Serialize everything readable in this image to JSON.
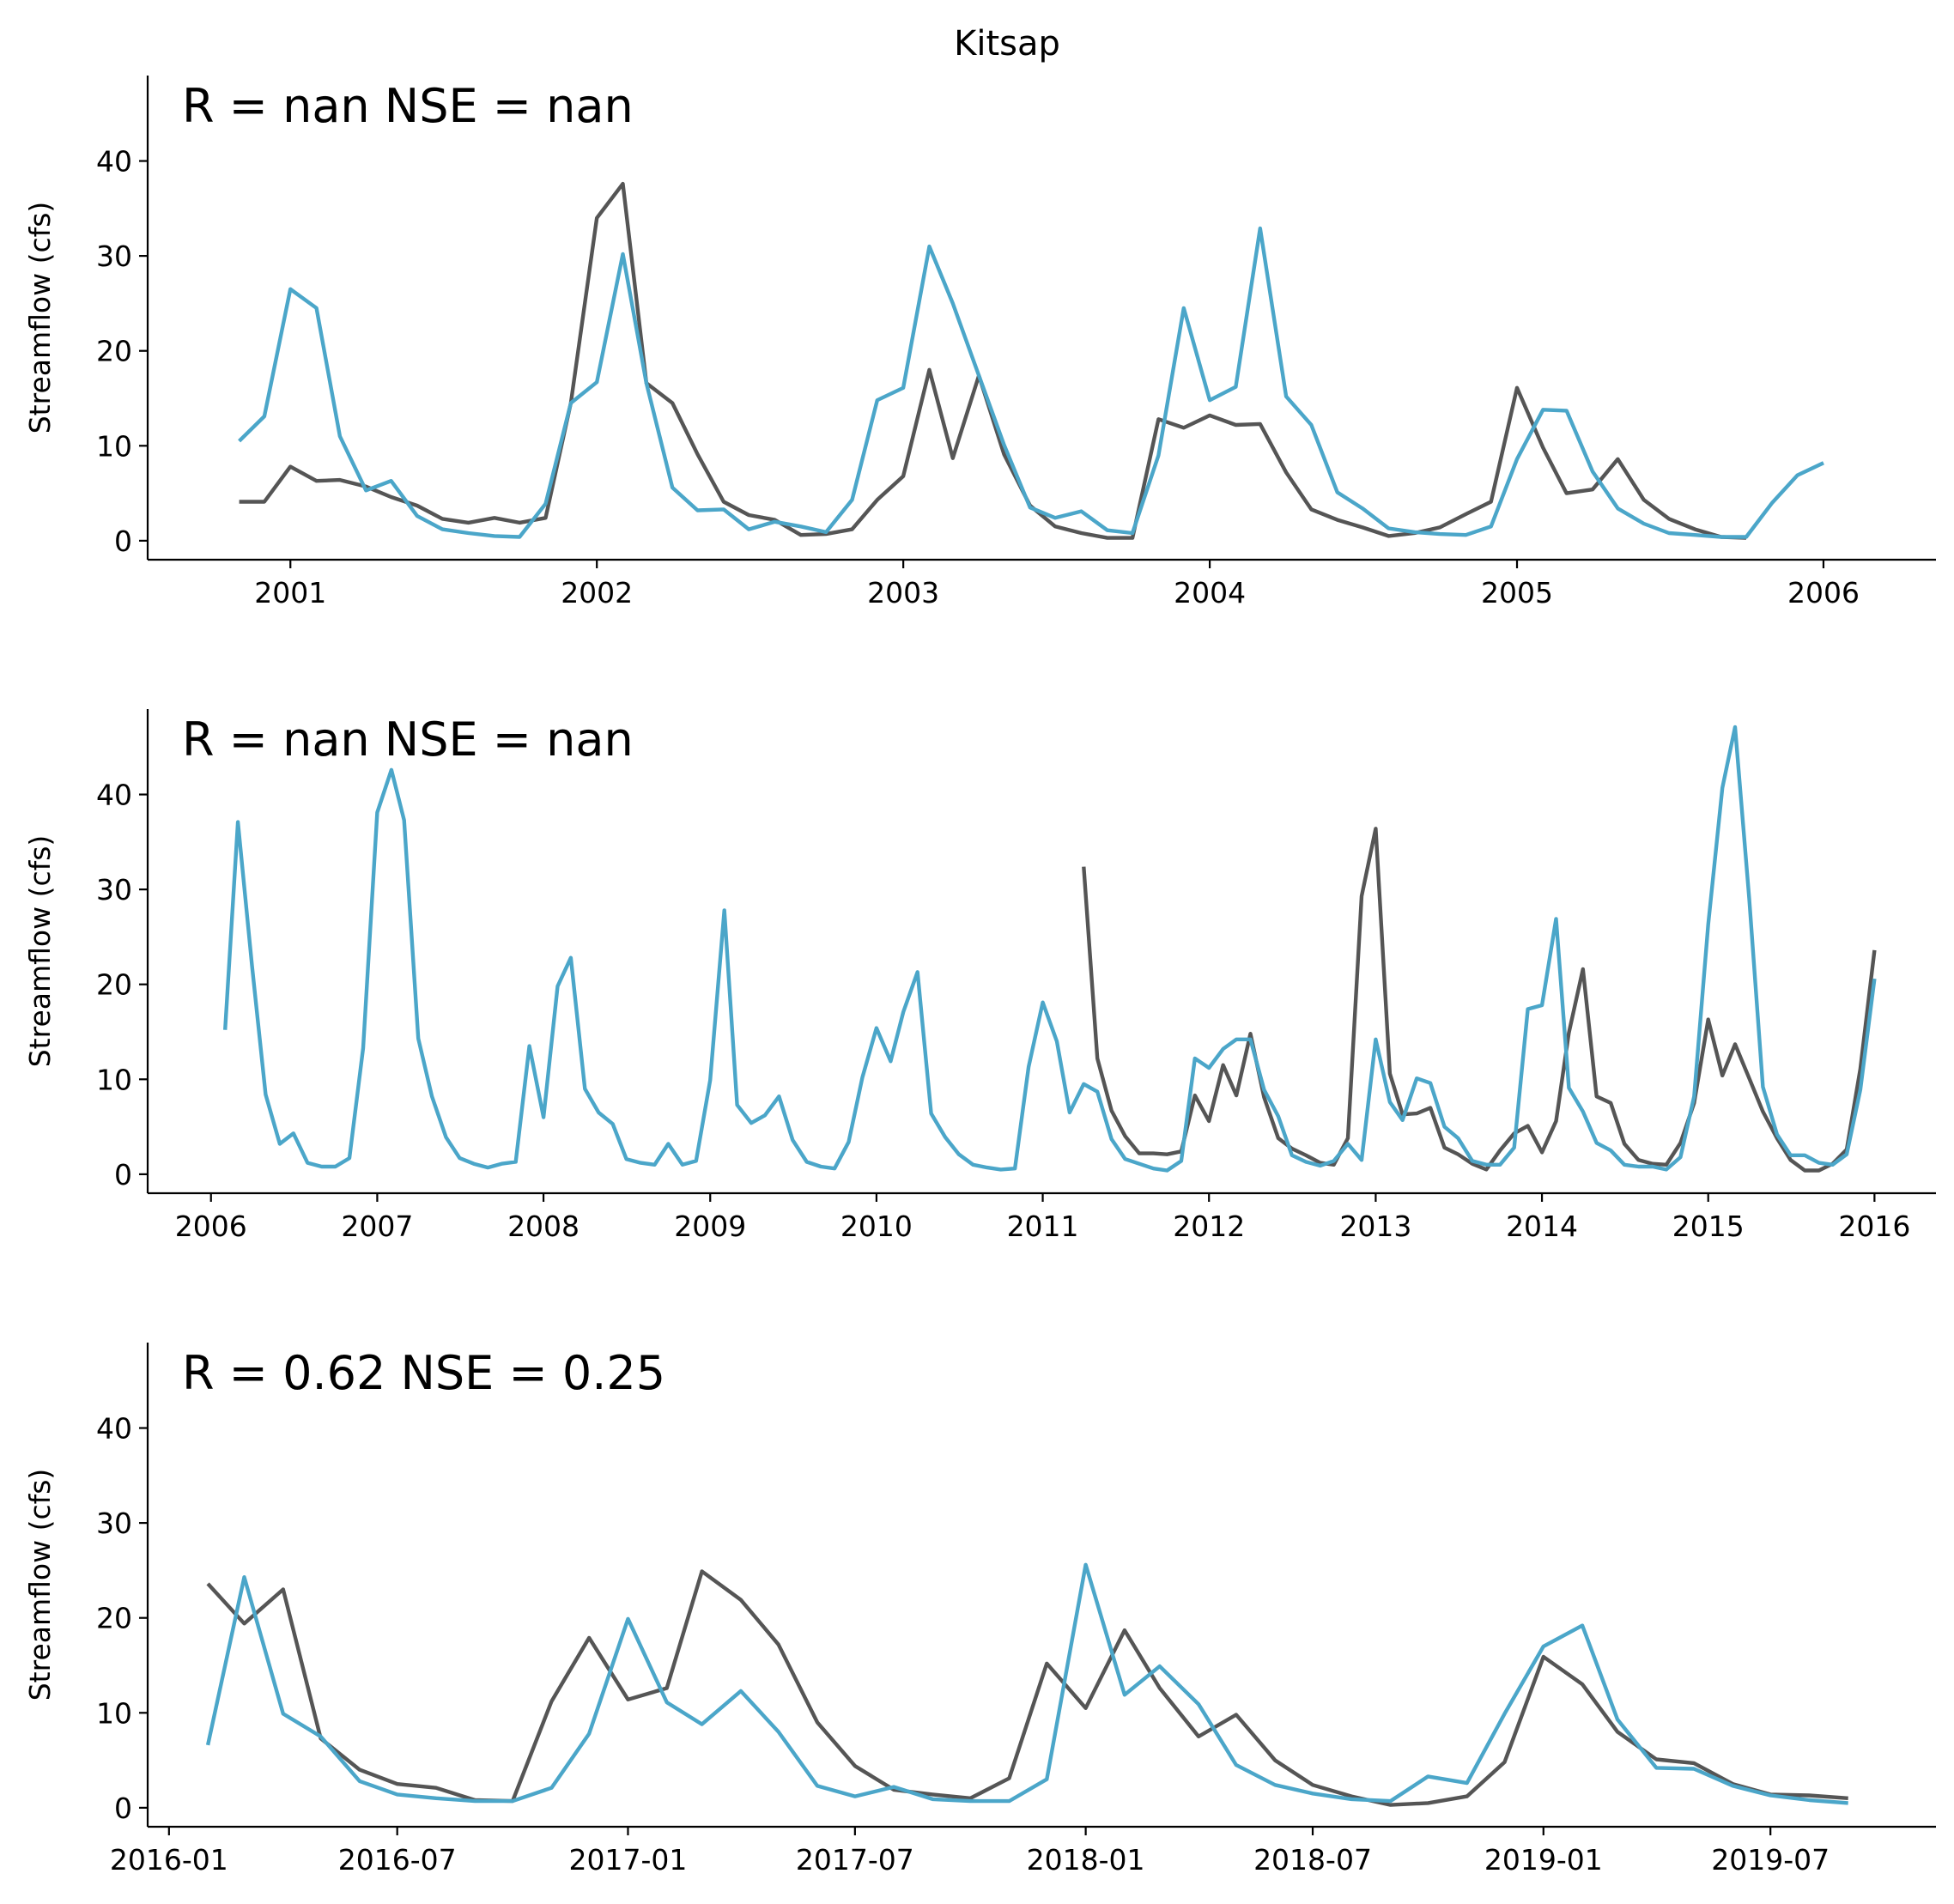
{
  "title": "Kitsap",
  "colors": {
    "gray_series": "#555555",
    "blue_series": "#4ba6c9"
  },
  "chart_data": [
    {
      "type": "line",
      "stats_text": "R = nan  NSE = nan",
      "ylabel": "Streamflow (cfs)",
      "ylim": [
        -2,
        49
      ],
      "yticks": [
        0,
        10,
        20,
        30,
        40
      ],
      "x_start": "2000-11",
      "xlim": [
        "2000-07-15",
        "2006-05-15"
      ],
      "xticks": [
        {
          "date": "2001-01",
          "label": "2001"
        },
        {
          "date": "2002-01",
          "label": "2002"
        },
        {
          "date": "2003-01",
          "label": "2003"
        },
        {
          "date": "2004-01",
          "label": "2004"
        },
        {
          "date": "2005-01",
          "label": "2005"
        },
        {
          "date": "2006-01",
          "label": "2006"
        }
      ],
      "series": [
        {
          "color": "#555555",
          "values": [
            4.1,
            4.1,
            7.8,
            6.3,
            6.4,
            5.7,
            4.6,
            3.7,
            2.3,
            1.9,
            2.4,
            1.9,
            2.4,
            14.5,
            34.0,
            37.6,
            16.6,
            14.5,
            9.1,
            4.1,
            2.7,
            2.2,
            0.6,
            0.7,
            1.2,
            4.3,
            6.8,
            18.0,
            8.7,
            17.4,
            9.1,
            3.7,
            1.5,
            0.8,
            0.3,
            0.3,
            12.8,
            11.9,
            13.2,
            12.2,
            12.3,
            7.2,
            3.3,
            2.2,
            1.4,
            0.5,
            0.8,
            1.4,
            2.8,
            4.1,
            16.1,
            9.8,
            5.0,
            5.4,
            8.6,
            4.3,
            2.3,
            1.2,
            0.4,
            0.3
          ]
        },
        {
          "color": "#4ba6c9",
          "values": [
            10.5,
            13.1,
            26.5,
            24.5,
            11.0,
            5.3,
            6.3,
            2.6,
            1.2,
            0.8,
            0.5,
            0.4,
            3.9,
            14.5,
            16.7,
            30.2,
            16.6,
            5.6,
            3.2,
            3.3,
            1.2,
            2.0,
            1.5,
            0.9,
            4.3,
            14.8,
            16.1,
            31.0,
            25.0,
            17.4,
            10.1,
            3.5,
            2.4,
            3.1,
            1.1,
            0.8,
            9.0,
            24.5,
            14.8,
            16.2,
            32.9,
            15.2,
            12.2,
            5.1,
            3.4,
            1.3,
            0.9,
            0.7,
            0.6,
            1.5,
            8.6,
            13.8,
            13.7,
            7.3,
            3.4,
            1.8,
            0.8,
            0.6,
            0.4,
            0.4,
            4.0,
            6.9,
            8.2
          ]
        }
      ]
    },
    {
      "type": "line",
      "stats_text": "R = nan  NSE = nan",
      "ylabel": "Streamflow (cfs)",
      "ylim": [
        -2,
        49
      ],
      "yticks": [
        0,
        10,
        20,
        30,
        40
      ],
      "x_start": "2006-02",
      "xlim": [
        "2005-08-15",
        "2016-05-15"
      ],
      "xticks": [
        {
          "date": "2006-01",
          "label": "2006"
        },
        {
          "date": "2007-01",
          "label": "2007"
        },
        {
          "date": "2008-01",
          "label": "2008"
        },
        {
          "date": "2009-01",
          "label": "2009"
        },
        {
          "date": "2010-01",
          "label": "2010"
        },
        {
          "date": "2011-01",
          "label": "2011"
        },
        {
          "date": "2012-01",
          "label": "2012"
        },
        {
          "date": "2013-01",
          "label": "2013"
        },
        {
          "date": "2014-01",
          "label": "2014"
        },
        {
          "date": "2015-01",
          "label": "2015"
        },
        {
          "date": "2016-01",
          "label": "2016"
        }
      ],
      "series": [
        {
          "color": "#555555",
          "values": [
            null,
            null,
            null,
            null,
            null,
            null,
            null,
            null,
            null,
            null,
            null,
            null,
            null,
            null,
            null,
            null,
            null,
            null,
            null,
            null,
            null,
            null,
            null,
            null,
            null,
            null,
            null,
            null,
            null,
            null,
            null,
            null,
            null,
            null,
            null,
            null,
            null,
            null,
            null,
            null,
            null,
            null,
            null,
            null,
            null,
            null,
            null,
            null,
            null,
            null,
            null,
            null,
            null,
            null,
            null,
            null,
            null,
            null,
            null,
            null,
            null,
            null,
            32.4,
            12.2,
            6.7,
            4.0,
            2.2,
            2.2,
            2.1,
            2.4,
            8.3,
            5.6,
            11.5,
            8.3,
            14.8,
            8.1,
            3.8,
            2.7,
            2.0,
            1.2,
            1.0,
            3.8,
            29.3,
            36.4,
            10.6,
            6.3,
            6.4,
            7.0,
            2.8,
            2.1,
            1.1,
            0.5,
            2.5,
            4.3,
            5.1,
            2.3,
            5.6,
            14.9,
            21.6,
            8.2,
            7.5,
            3.2,
            1.5,
            1.1,
            1.0,
            3.3,
            7.5,
            16.3,
            10.4,
            13.7,
            10.1,
            6.6,
            3.8,
            1.5,
            0.4,
            0.4,
            1.1,
            2.6,
            11.1,
            23.6
          ]
        },
        {
          "color": "#4ba6c9",
          "values": [
            15.2,
            37.1,
            22.0,
            8.4,
            3.2,
            4.3,
            1.2,
            0.8,
            0.8,
            1.7,
            13.3,
            38.1,
            42.6,
            37.3,
            14.3,
            8.2,
            3.9,
            1.7,
            1.1,
            0.7,
            1.1,
            1.3,
            13.5,
            6.0,
            19.8,
            22.8,
            9.0,
            6.5,
            5.3,
            1.6,
            1.2,
            1.0,
            3.2,
            1.0,
            1.4,
            9.9,
            27.8,
            7.3,
            5.4,
            6.2,
            8.2,
            3.6,
            1.3,
            0.8,
            0.6,
            3.4,
            10.2,
            15.4,
            11.9,
            17.1,
            21.3,
            6.4,
            3.9,
            2.1,
            1.0,
            0.7,
            0.5,
            0.6,
            11.3,
            18.1,
            14.0,
            6.5,
            9.5,
            8.7,
            3.7,
            1.6,
            1.1,
            0.6,
            0.4,
            1.4,
            12.2,
            11.2,
            13.2,
            14.2,
            14.2,
            8.9,
            6.1,
            2.0,
            1.3,
            0.9,
            1.4,
            3.2,
            1.5,
            14.2,
            7.6,
            5.7,
            10.1,
            9.6,
            5.0,
            3.8,
            1.4,
            1.0,
            1.0,
            2.8,
            17.4,
            17.8,
            26.9,
            9.1,
            6.6,
            3.3,
            2.5,
            1.0,
            0.8,
            0.8,
            0.5,
            1.8,
            8.2,
            26.3,
            40.7,
            47.1,
            29.0,
            9.2,
            4.2,
            2.0,
            2.0,
            1.2,
            1.0,
            2.1,
            8.9,
            20.6
          ]
        }
      ]
    },
    {
      "type": "line",
      "stats_text": "R = 0.62  NSE = 0.25",
      "ylabel": "Streamflow (cfs)",
      "ylim": [
        -2,
        49
      ],
      "yticks": [
        0,
        10,
        20,
        30,
        40
      ],
      "x_start": "2016-02",
      "xlim": [
        "2015-12-15",
        "2019-11-10"
      ],
      "xticks": [
        {
          "date": "2016-01",
          "label": "2016-01"
        },
        {
          "date": "2016-07",
          "label": "2016-07"
        },
        {
          "date": "2017-01",
          "label": "2017-01"
        },
        {
          "date": "2017-07",
          "label": "2017-07"
        },
        {
          "date": "2018-01",
          "label": "2018-01"
        },
        {
          "date": "2018-07",
          "label": "2018-07"
        },
        {
          "date": "2019-01",
          "label": "2019-01"
        },
        {
          "date": "2019-07",
          "label": "2019-07"
        }
      ],
      "series": [
        {
          "color": "#555555",
          "values": [
            23.6,
            19.4,
            23.0,
            7.3,
            4.0,
            2.5,
            2.1,
            0.8,
            0.7,
            11.2,
            17.9,
            11.4,
            12.6,
            24.9,
            21.9,
            17.2,
            9.0,
            4.4,
            1.9,
            1.4,
            1.0,
            3.1,
            15.2,
            10.5,
            18.7,
            12.6,
            7.5,
            9.8,
            5.0,
            2.4,
            1.2,
            0.3,
            0.5,
            1.2,
            4.8,
            15.9,
            13.0,
            8.0,
            5.1,
            4.7,
            2.5,
            1.4,
            1.3,
            1.0
          ]
        },
        {
          "color": "#4ba6c9",
          "values": [
            6.6,
            24.3,
            9.9,
            7.5,
            2.8,
            1.4,
            1.0,
            0.7,
            0.7,
            2.1,
            7.8,
            19.9,
            11.1,
            8.8,
            12.3,
            8.0,
            2.3,
            1.2,
            2.2,
            0.9,
            0.7,
            0.7,
            3.0,
            25.6,
            11.9,
            14.9,
            10.9,
            4.5,
            2.4,
            1.5,
            0.9,
            0.7,
            3.3,
            2.6,
            9.9,
            17.0,
            19.2,
            9.3,
            4.2,
            4.1,
            2.3,
            1.3,
            0.8,
            0.5
          ]
        }
      ]
    }
  ]
}
